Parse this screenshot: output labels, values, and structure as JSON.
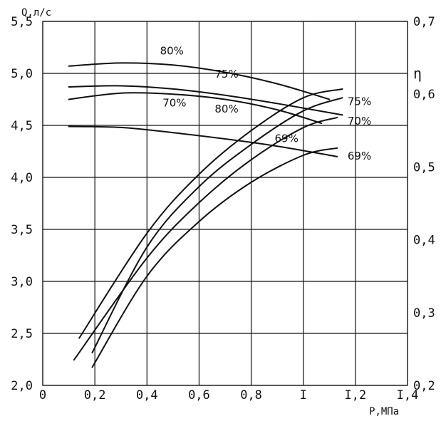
{
  "chart_data": {
    "type": "line",
    "title": "",
    "x": {
      "label": "P,МПа",
      "range": [
        0,
        1.4
      ],
      "ticks": [
        0,
        0.2,
        0.4,
        0.6,
        0.8,
        1.0,
        1.2,
        1.4
      ],
      "tick_labels": [
        "0",
        "0,2",
        "0,4",
        "0,6",
        "0,8",
        "I",
        "I,2",
        "I,4"
      ]
    },
    "y_left": {
      "label": "Q,л/с",
      "range": [
        2.0,
        5.5
      ],
      "ticks": [
        2.0,
        2.5,
        3.0,
        3.5,
        4.0,
        4.5,
        5.0,
        5.5
      ],
      "tick_labels": [
        "2,0",
        "2,5",
        "3,0",
        "3,5",
        "4,0",
        "4,5",
        "5,0",
        "5,5"
      ]
    },
    "y_right": {
      "label": "η",
      "range": [
        0.2,
        0.7
      ],
      "ticks": [
        0.2,
        0.3,
        0.4,
        0.5,
        0.6,
        0.7
      ],
      "tick_labels": [
        "0,2",
        "0,3",
        "0,4",
        "0,5",
        "0,6",
        "0,7"
      ]
    },
    "grid": true,
    "series": [
      {
        "name": "80%",
        "axis": "left",
        "group": "Q",
        "x": [
          0.1,
          0.3,
          0.5,
          0.7,
          0.9,
          1.1
        ],
        "y": [
          5.07,
          5.1,
          5.08,
          5.01,
          4.9,
          4.75
        ],
        "label_at": [
          0.45,
          5.18
        ]
      },
      {
        "name": "75%",
        "axis": "left",
        "group": "Q",
        "x": [
          0.1,
          0.3,
          0.5,
          0.7,
          0.9,
          1.15
        ],
        "y": [
          4.87,
          4.88,
          4.85,
          4.79,
          4.71,
          4.6
        ],
        "label_at": [
          0.66,
          4.96
        ]
      },
      {
        "name": "70%",
        "axis": "left",
        "group": "Q",
        "x": [
          0.1,
          0.3,
          0.5,
          0.7,
          0.9,
          1.07
        ],
        "y": [
          4.75,
          4.81,
          4.8,
          4.75,
          4.65,
          4.52
        ],
        "label_at": [
          0.46,
          4.68
        ]
      },
      {
        "name": "69%",
        "axis": "left",
        "group": "Q",
        "x": [
          0.1,
          0.3,
          0.5,
          0.7,
          0.9,
          1.13
        ],
        "y": [
          4.49,
          4.48,
          4.43,
          4.37,
          4.3,
          4.2
        ],
        "label_at": [
          0.89,
          4.34
        ]
      },
      {
        "name": "80%",
        "axis": "right",
        "group": "eta",
        "x": [
          0.14,
          0.4,
          0.6,
          0.8,
          1.0,
          1.15
        ],
        "y": [
          0.265,
          0.409,
          0.49,
          0.55,
          0.595,
          0.607
        ],
        "label_at": [
          0.66,
          0.575
        ]
      },
      {
        "name": "75%",
        "axis": "right",
        "group": "eta",
        "x": [
          0.19,
          0.4,
          0.6,
          0.8,
          1.0,
          1.15
        ],
        "y": [
          0.245,
          0.39,
          0.473,
          0.531,
          0.577,
          0.595
        ],
        "label_at": [
          1.17,
          0.585
        ]
      },
      {
        "name": "70%",
        "axis": "right",
        "group": "eta",
        "x": [
          0.12,
          0.4,
          0.6,
          0.8,
          1.0,
          1.13
        ],
        "y": [
          0.235,
          0.375,
          0.451,
          0.51,
          0.554,
          0.568
        ],
        "label_at": [
          1.17,
          0.558
        ]
      },
      {
        "name": "69%",
        "axis": "right",
        "group": "eta",
        "x": [
          0.19,
          0.4,
          0.6,
          0.8,
          1.0,
          1.13
        ],
        "y": [
          0.225,
          0.35,
          0.425,
          0.479,
          0.516,
          0.526
        ],
        "label_at": [
          1.17,
          0.51
        ]
      }
    ]
  }
}
